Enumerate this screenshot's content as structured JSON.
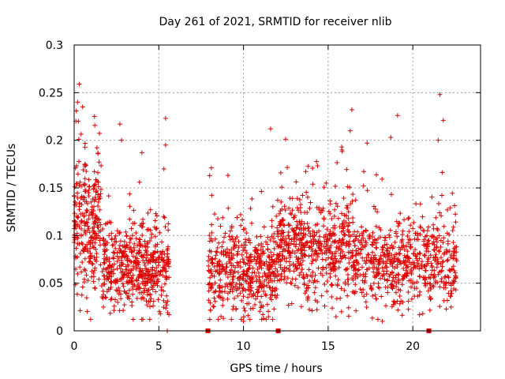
{
  "chart_data": {
    "type": "scatter",
    "title": "Day 261 of 2021, SRMTID for receiver nlib",
    "xlabel": "GPS time / hours",
    "ylabel": "SRMTID / TECUs",
    "xlim": [
      0,
      24
    ],
    "ylim": [
      0,
      0.3
    ],
    "x_ticks": [
      0,
      5,
      10,
      15,
      20
    ],
    "x_tick_labels": [
      "0",
      "5",
      "10",
      "15",
      "20"
    ],
    "y_ticks": [
      0,
      0.05,
      0.1,
      0.15,
      0.2,
      0.25,
      0.3
    ],
    "y_tick_labels": [
      "0",
      "0.05",
      "0.1",
      "0.15",
      "0.2",
      "0.25",
      "0.3"
    ],
    "grid": true,
    "marker": "plus",
    "color": "#e00000",
    "gap_markers_x": [
      7.9,
      12.05,
      20.95
    ],
    "clusters": [
      {
        "x_range": [
          0.0,
          1.6
        ],
        "y_center": 0.11,
        "y_spread": 0.05,
        "count": 260
      },
      {
        "x_range": [
          1.6,
          5.6
        ],
        "y_center": 0.065,
        "y_spread": 0.03,
        "count": 520
      },
      {
        "x_range": [
          7.9,
          12.0
        ],
        "y_center": 0.06,
        "y_spread": 0.03,
        "count": 480
      },
      {
        "x_range": [
          12.0,
          16.5
        ],
        "y_center": 0.085,
        "y_spread": 0.035,
        "count": 560
      },
      {
        "x_range": [
          16.5,
          22.6
        ],
        "y_center": 0.07,
        "y_spread": 0.03,
        "count": 620
      }
    ],
    "notable_points": [
      {
        "x": 0.3,
        "y": 0.259
      },
      {
        "x": 0.2,
        "y": 0.24
      },
      {
        "x": 0.5,
        "y": 0.235
      },
      {
        "x": 0.1,
        "y": 0.22
      },
      {
        "x": 1.2,
        "y": 0.225
      },
      {
        "x": 2.7,
        "y": 0.217
      },
      {
        "x": 5.4,
        "y": 0.223
      },
      {
        "x": 5.4,
        "y": 0.195
      },
      {
        "x": 2.8,
        "y": 0.2
      },
      {
        "x": 4.0,
        "y": 0.187
      },
      {
        "x": 5.3,
        "y": 0.17
      },
      {
        "x": 16.4,
        "y": 0.232
      },
      {
        "x": 16.3,
        "y": 0.21
      },
      {
        "x": 11.6,
        "y": 0.212
      },
      {
        "x": 18.7,
        "y": 0.203
      },
      {
        "x": 19.1,
        "y": 0.226
      },
      {
        "x": 21.6,
        "y": 0.248
      },
      {
        "x": 21.8,
        "y": 0.221
      },
      {
        "x": 21.5,
        "y": 0.2
      },
      {
        "x": 17.3,
        "y": 0.197
      },
      {
        "x": 15.8,
        "y": 0.193
      },
      {
        "x": 8.1,
        "y": 0.171
      },
      {
        "x": 8.0,
        "y": 0.163
      },
      {
        "x": 10.0,
        "y": 0.01
      },
      {
        "x": 18.2,
        "y": 0.01
      },
      {
        "x": 5.5,
        "y": 0.0
      }
    ]
  }
}
